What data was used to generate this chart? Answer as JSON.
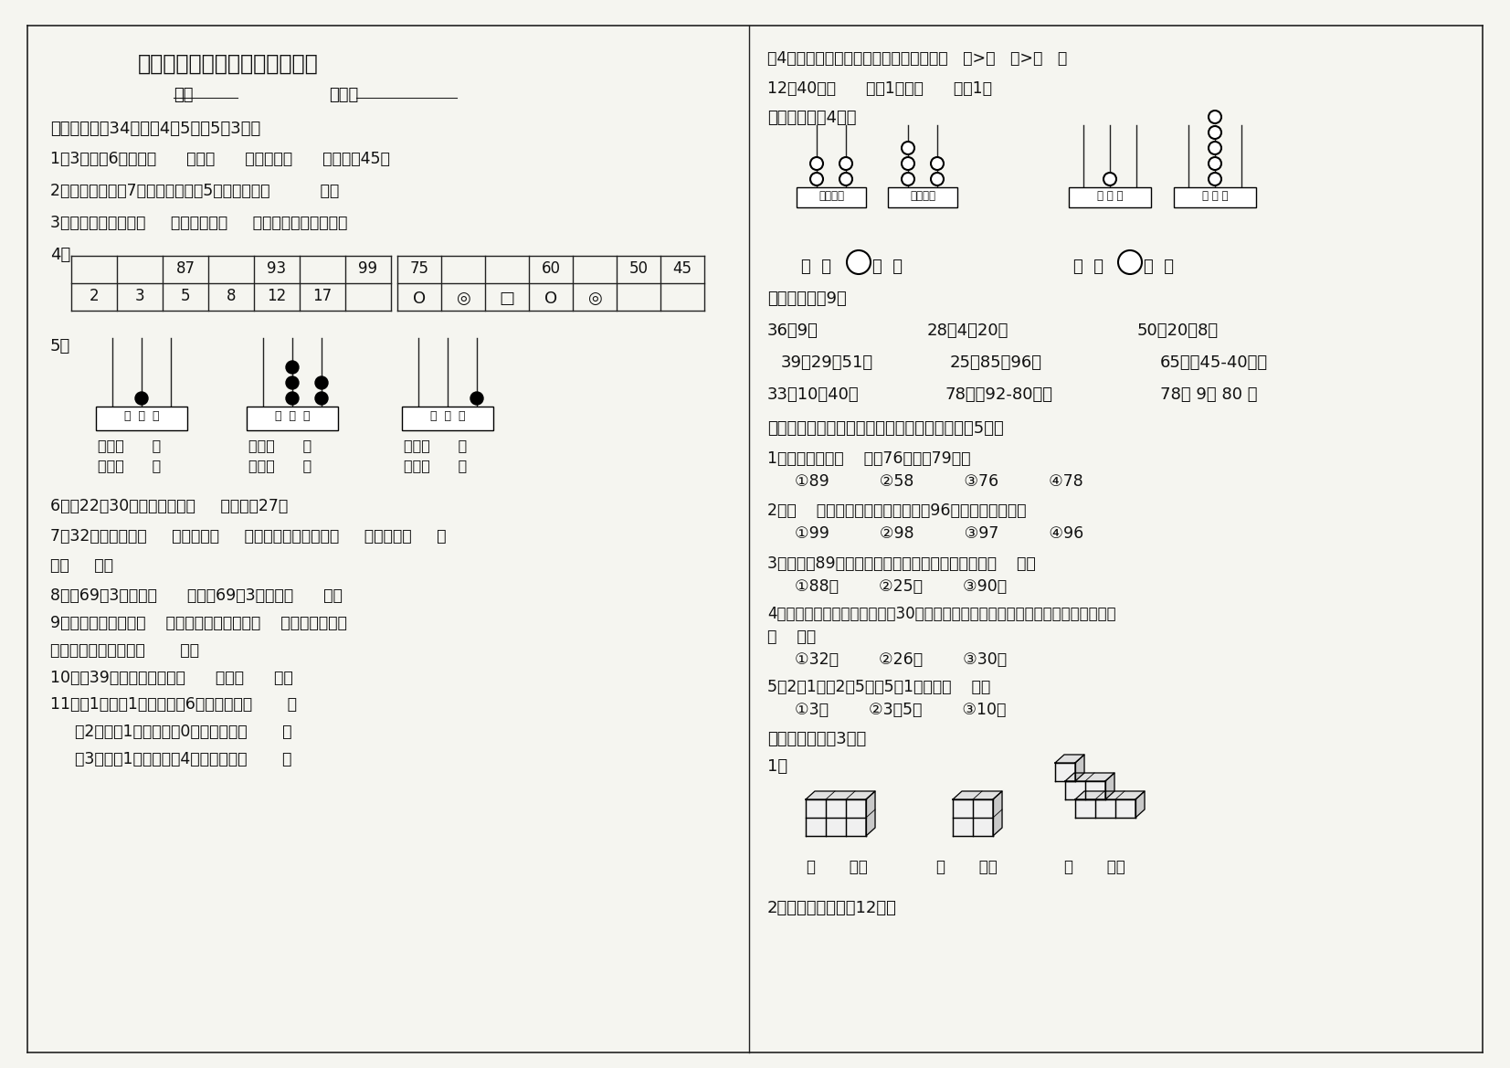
{
  "bg_color": "#f5f5f0",
  "line_color": "#222222",
  "title": "一年级数学下期期末考试模拟题",
  "subtitle_left": "班级",
  "subtitle_right": "姓名：",
  "sec1_header": "一、我会填（34分）（4题5分，5题3分）",
  "q1": "1、3个一和6个十是（      ）。（      ）个十和（      ）个一是45。",
  "q2": "2、个位上的数是7，十位上的数是5，这个数是（          ）。",
  "q3": "3、最小的两位数是（     ），再加上（     ）就是最大的两位数。",
  "q6": "6、在22与30这两个数中，（     ）最接近27，",
  "q7a": "7、32十位上数是（     ），表示（     ）个十，个位上数是（     ），表示（     ）",
  "q7b": "个（     ）。",
  "q8": "8、比69多3的数是（      ），比69少3的数是（      ）。",
  "q9a": "9、最大的两位数是（    ），最大的一位数是（    ），最大的两位",
  "q9b": "数比最大的一位数多（       ）。",
  "q10": "10、和39相邻的两个数是（      ）和（      ）。",
  "q11a": "11、（1）写出1个个位上是6的两位数。（       ）",
  "q11b": "（2）写出1个个位上是0的两位数。（       ）",
  "q11c": "（3）写出1个十位上是4的两位数。（       ）",
  "r_q4": "（4）按照从小到大的顺序排列这三个数（   ）>（   ）>（   ）",
  "r_q12": "12、40比（      ）大1，比（      ）小1。",
  "sec2_header": "二、我会比（4分）",
  "sec3_header": "三、算一算：9分",
  "r1a": "36＋9＝",
  "r1b": "28＋4＋20＝",
  "r1c": "50－20－8＝",
  "r2a": "39－29＋51＝",
  "r2b": "25＋85－96＝",
  "r2c": "65－（45-40）＝",
  "r3a": "33＋10－40＝",
  "r3b": "78＋（92-80）＝",
  "r3c": "78＋ 9－ 80 ＝",
  "sec4_header": "四、选择。请将正确答案的序号填在括号里。（5分）",
  "c1q": "1、下列数中，（    ）比76大，比79小。",
  "c1a": "①89          ②58          ③76          ④78",
  "c2q": "2、（    ）不是最大的两位数，但比96大，而且是双数。",
  "c2a": "①99          ②98          ③97          ④96",
  "c3q": "3、红花有89朵，黄花比红花少很多。黄花可能有（    ）。",
  "c3a": "①88只        ②25只        ③90只",
  "c4q": "4、同学们去浇树，六年级浇了30棵，三年级比六年级浇的少一些。三年级可能植树",
  "c4q2": "（    ）。",
  "c4a": "①32棵        ②26棵        ③30棵",
  "c5q": "5、2张1元，2张5角，5张1角组成（    ）。",
  "c5a": "①3元        ②3元5角        ③10元",
  "sec5_header": "五、数一数。（3分）",
  "count_label": "1、",
  "count_foot": "（       ）个",
  "sec5b": "2、图形大世界。（12分）",
  "t1_row0": [
    "",
    "",
    "87",
    "",
    "93",
    "",
    "99"
  ],
  "t1_row1": [
    "2",
    "3",
    "5",
    "8",
    "12",
    "17",
    ""
  ],
  "t2_row0": [
    "75",
    "",
    "",
    "60",
    "",
    "50",
    "45"
  ],
  "t2_row1": [
    "O",
    "◎",
    "□",
    "O",
    "◎",
    "",
    ""
  ]
}
